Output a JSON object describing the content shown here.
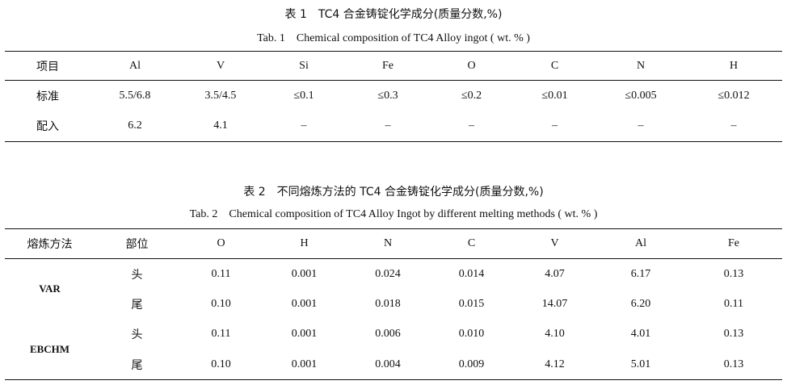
{
  "table1": {
    "caption_cn": "表 1　TC4 合金铸锭化学成分(质量分数,%)",
    "caption_en": "Tab. 1　Chemical composition of TC4 Alloy ingot ( wt. % )",
    "headers": [
      "项目",
      "Al",
      "V",
      "Si",
      "Fe",
      "O",
      "C",
      "N",
      "H"
    ],
    "rows": [
      [
        "标准",
        "5.5/6.8",
        "3.5/4.5",
        "≤0.1",
        "≤0.3",
        "≤0.2",
        "≤0.01",
        "≤0.005",
        "≤0.012"
      ],
      [
        "配入",
        "6.2",
        "4.1",
        "–",
        "–",
        "–",
        "–",
        "–",
        "–"
      ]
    ]
  },
  "table2": {
    "caption_cn": "表 2　不同熔炼方法的 TC4 合金铸锭化学成分(质量分数,%)",
    "caption_en": "Tab. 2　Chemical composition of TC4 Alloy Ingot by different melting methods ( wt. % )",
    "headers": [
      "熔炼方法",
      "部位",
      "O",
      "H",
      "N",
      "C",
      "V",
      "Al",
      "Fe"
    ],
    "groups": [
      {
        "method": "VAR",
        "rows": [
          [
            "头",
            "0.11",
            "0.001",
            "0.024",
            "0.014",
            "4.07",
            "6.17",
            "0.13"
          ],
          [
            "尾",
            "0.10",
            "0.001",
            "0.018",
            "0.015",
            "14.07",
            "6.20",
            "0.11"
          ]
        ]
      },
      {
        "method": "EBCHM",
        "rows": [
          [
            "头",
            "0.11",
            "0.001",
            "0.006",
            "0.010",
            "4.10",
            "4.01",
            "0.13"
          ],
          [
            "尾",
            "0.10",
            "0.001",
            "0.004",
            "0.009",
            "4.12",
            "5.01",
            "0.13"
          ]
        ]
      }
    ]
  }
}
